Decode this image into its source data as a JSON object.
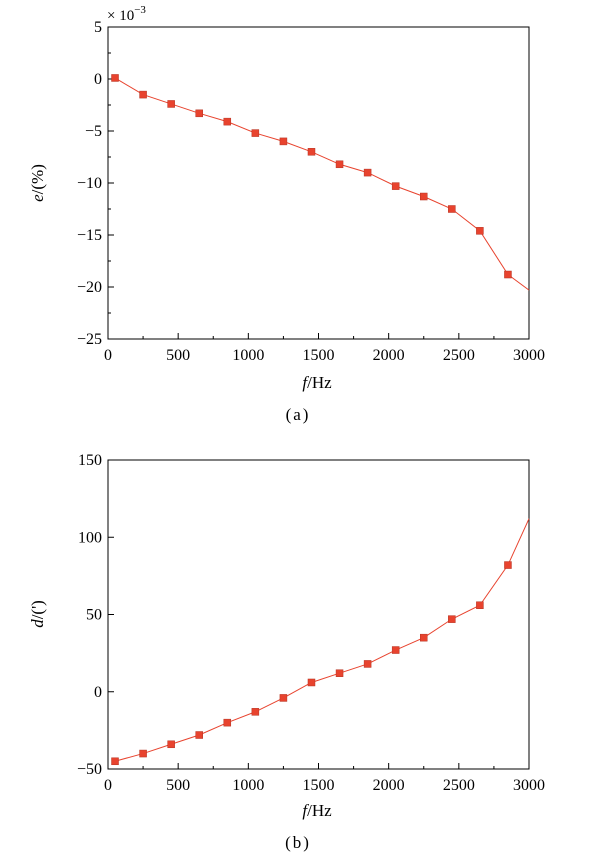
{
  "chart_data": [
    {
      "type": "line",
      "panel_label": "(a)",
      "multiplier_label": "× 10",
      "multiplier_exponent": "−3",
      "xlabel": {
        "italic": "f",
        "rest": "/Hz"
      },
      "ylabel": {
        "italic": "e",
        "rest": "/(%)"
      },
      "xlim": [
        0,
        3000
      ],
      "ylim": [
        -25,
        5
      ],
      "xticks": [
        0,
        500,
        1000,
        1500,
        2000,
        2500,
        3000
      ],
      "xtick_labels": [
        "0",
        "500",
        "1000",
        "1500",
        "2000",
        "2500",
        "3000"
      ],
      "yticks": [
        -25,
        -20,
        -15,
        -10,
        -5,
        0,
        5
      ],
      "ytick_labels": [
        "−25",
        "−20",
        "−15",
        "−10",
        "−5",
        "0",
        "5"
      ],
      "color": "#e8432e",
      "line": {
        "x": [
          50,
          250,
          450,
          650,
          850,
          1050,
          1250,
          1450,
          1650,
          1850,
          2050,
          2250,
          2450,
          2650,
          2850,
          3000
        ],
        "y": [
          0.1,
          -1.5,
          -2.4,
          -3.3,
          -4.1,
          -5.2,
          -6.0,
          -7.0,
          -8.2,
          -9.0,
          -10.3,
          -11.3,
          -12.5,
          -14.6,
          -18.8,
          -20.3
        ]
      },
      "markers": {
        "x": [
          50,
          250,
          450,
          650,
          850,
          1050,
          1250,
          1450,
          1650,
          1850,
          2050,
          2250,
          2450,
          2650,
          2850
        ],
        "y": [
          0.1,
          -1.5,
          -2.4,
          -3.3,
          -4.1,
          -5.2,
          -6.0,
          -7.0,
          -8.2,
          -9.0,
          -10.3,
          -11.3,
          -12.5,
          -14.6,
          -18.8
        ]
      }
    },
    {
      "type": "line",
      "panel_label": "(b)",
      "xlabel": {
        "italic": "f",
        "rest": "/Hz"
      },
      "ylabel": {
        "italic": "d",
        "rest": "/(')"
      },
      "xlim": [
        0,
        3000
      ],
      "ylim": [
        -50,
        150
      ],
      "xticks": [
        0,
        500,
        1000,
        1500,
        2000,
        2500,
        3000
      ],
      "xtick_labels": [
        "0",
        "500",
        "1000",
        "1500",
        "2000",
        "2500",
        "3000"
      ],
      "yticks": [
        -50,
        0,
        50,
        100,
        150
      ],
      "ytick_labels": [
        "−50",
        "0",
        "50",
        "100",
        "150"
      ],
      "color": "#e8432e",
      "line": {
        "x": [
          50,
          250,
          450,
          650,
          850,
          1050,
          1250,
          1450,
          1650,
          1850,
          2050,
          2250,
          2450,
          2650,
          2850,
          3000
        ],
        "y": [
          -45,
          -40,
          -34,
          -28,
          -20,
          -13,
          -4,
          6,
          12,
          18,
          27,
          35,
          47,
          56,
          82,
          112
        ]
      },
      "markers": {
        "x": [
          50,
          250,
          450,
          650,
          850,
          1050,
          1250,
          1450,
          1650,
          1850,
          2050,
          2250,
          2450,
          2650,
          2850
        ],
        "y": [
          -45,
          -40,
          -34,
          -28,
          -20,
          -13,
          -4,
          6,
          12,
          18,
          27,
          35,
          47,
          56,
          82
        ]
      }
    }
  ]
}
